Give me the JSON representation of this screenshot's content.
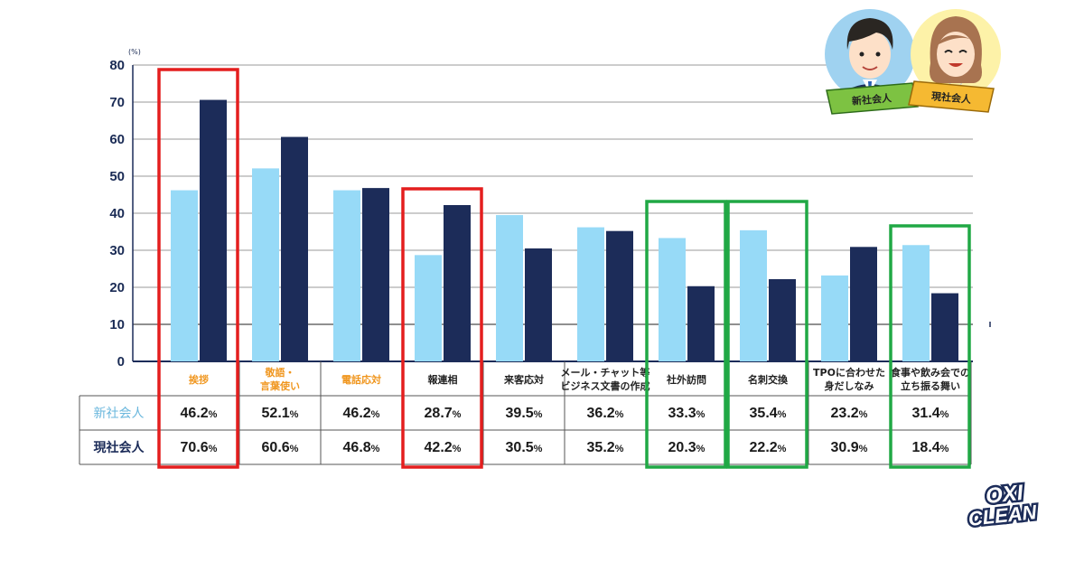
{
  "chart_data": {
    "type": "bar",
    "unit": "(%)",
    "ylim": [
      0,
      80
    ],
    "yticks": [
      0,
      10,
      20,
      30,
      40,
      50,
      60,
      70,
      80
    ],
    "grid": true,
    "categories": [
      [
        "挨拶"
      ],
      [
        "敬語・",
        "言葉使い"
      ],
      [
        "電話応対"
      ],
      [
        "報連相"
      ],
      [
        "来客応対"
      ],
      [
        "メール・チャット等",
        "ビジネス文書の作成"
      ],
      [
        "社外訪問"
      ],
      [
        "名刺交換"
      ],
      [
        "TPOに合わせた",
        "身だしなみ"
      ],
      [
        "食事や飲み会での",
        "立ち振る舞い"
      ]
    ],
    "series": [
      {
        "name": "新社会人",
        "color": "#97daf7",
        "values": [
          46.2,
          52.1,
          46.2,
          28.7,
          39.5,
          36.2,
          33.3,
          35.4,
          23.2,
          31.4
        ]
      },
      {
        "name": "現社会人",
        "color": "#1c2c59",
        "values": [
          70.6,
          60.6,
          46.8,
          42.2,
          30.5,
          35.2,
          20.3,
          22.2,
          30.9,
          18.4
        ]
      }
    ],
    "category_label_colors": [
      "#f0961e",
      "#f0961e",
      "#f0961e",
      "#222222",
      "#222222",
      "#222222",
      "#222222",
      "#222222",
      "#222222",
      "#222222"
    ],
    "percent_suffix": "%",
    "highlights": [
      {
        "color": "#e41e1e",
        "categories": [
          0
        ]
      },
      {
        "color": "#e41e1e",
        "categories": [
          3
        ]
      },
      {
        "color": "#20a845",
        "categories": [
          6
        ]
      },
      {
        "color": "#20a845",
        "categories": [
          7
        ]
      },
      {
        "color": "#20a845",
        "categories": [
          9
        ]
      }
    ]
  },
  "badges": {
    "new": "新社会人",
    "current": "現社会人"
  },
  "logo": {
    "line1": "OXI",
    "line2": "CLEAN"
  }
}
